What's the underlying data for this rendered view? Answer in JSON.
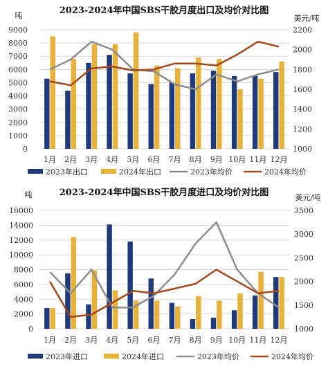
{
  "chart_data": [
    {
      "type": "bar",
      "title": "2023-2024年中国SBS干胶月度出口及均价对比图",
      "ylabel": "吨",
      "y2label": "美元/吨",
      "categories": [
        "1月",
        "2月",
        "3月",
        "4月",
        "5月",
        "6月",
        "7月",
        "8月",
        "9月",
        "10月",
        "11月",
        "12月"
      ],
      "ylim": [
        0,
        9000
      ],
      "yticks": [
        0,
        1000,
        2000,
        3000,
        4000,
        5000,
        6000,
        7000,
        8000,
        9000
      ],
      "y2lim": [
        1000,
        2200
      ],
      "y2ticks": [
        1000,
        1200,
        1400,
        1600,
        1800,
        2000,
        2200
      ],
      "series": [
        {
          "name": "2023年出口",
          "kind": "bar",
          "axis": "left",
          "color": "#1f3a7a",
          "values": [
            5300,
            4400,
            6500,
            7100,
            5700,
            4900,
            5000,
            5700,
            5900,
            5500,
            5500,
            5800
          ]
        },
        {
          "name": "2024年出口",
          "kind": "bar",
          "axis": "left",
          "color": "#e8b23a",
          "values": [
            8500,
            6800,
            7900,
            7900,
            8800,
            6300,
            6100,
            6900,
            6800,
            4500,
            5300,
            6600
          ]
        },
        {
          "name": "2023年均价",
          "kind": "line",
          "axis": "right",
          "color": "#8c8c8c",
          "values": [
            1800,
            1900,
            2080,
            2000,
            1800,
            1780,
            1650,
            1600,
            1750,
            1680,
            1750,
            1800
          ]
        },
        {
          "name": "2024年均价",
          "kind": "line",
          "axis": "right",
          "color": "#a3471d",
          "values": [
            1680,
            1640,
            1810,
            1830,
            1790,
            1800,
            1860,
            1860,
            1840,
            1950,
            2080,
            2030
          ]
        }
      ],
      "legend": "bottom",
      "grid": true
    },
    {
      "type": "bar",
      "title": "2023-2024年中国SBS干胶月度进口及均价对比图",
      "ylabel": "吨",
      "y2label": "美元/吨",
      "categories": [
        "1月",
        "2月",
        "3月",
        "4月",
        "5月",
        "6月",
        "7月",
        "8月",
        "9月",
        "10月",
        "11月",
        "12月"
      ],
      "ylim": [
        0,
        16000
      ],
      "yticks": [
        0,
        2000,
        4000,
        6000,
        8000,
        10000,
        12000,
        14000,
        16000
      ],
      "y2lim": [
        1000,
        3500
      ],
      "y2ticks": [
        1000,
        1500,
        2000,
        2500,
        3000,
        3500
      ],
      "series": [
        {
          "name": "2023年进口",
          "kind": "bar",
          "axis": "left",
          "color": "#1f3a7a",
          "values": [
            2800,
            7500,
            3300,
            14100,
            11800,
            6800,
            3500,
            1300,
            1500,
            2500,
            4500,
            7000
          ]
        },
        {
          "name": "2024年进口",
          "kind": "bar",
          "axis": "left",
          "color": "#e8b23a",
          "values": [
            2800,
            12400,
            7900,
            5200,
            3800,
            3800,
            3000,
            4400,
            3800,
            4800,
            7700,
            7000
          ]
        },
        {
          "name": "2023年均价",
          "kind": "line",
          "axis": "right",
          "color": "#8c8c8c",
          "values": [
            2200,
            1750,
            2250,
            1450,
            1450,
            1700,
            2150,
            2800,
            3250,
            2250,
            1750,
            1450
          ]
        },
        {
          "name": "2024年均价",
          "kind": "line",
          "axis": "right",
          "color": "#a3471d",
          "values": [
            2000,
            1250,
            1300,
            1550,
            1800,
            1750,
            1850,
            1950,
            2250,
            2000,
            1750,
            1800
          ]
        }
      ],
      "legend": "bottom",
      "grid": true
    }
  ]
}
